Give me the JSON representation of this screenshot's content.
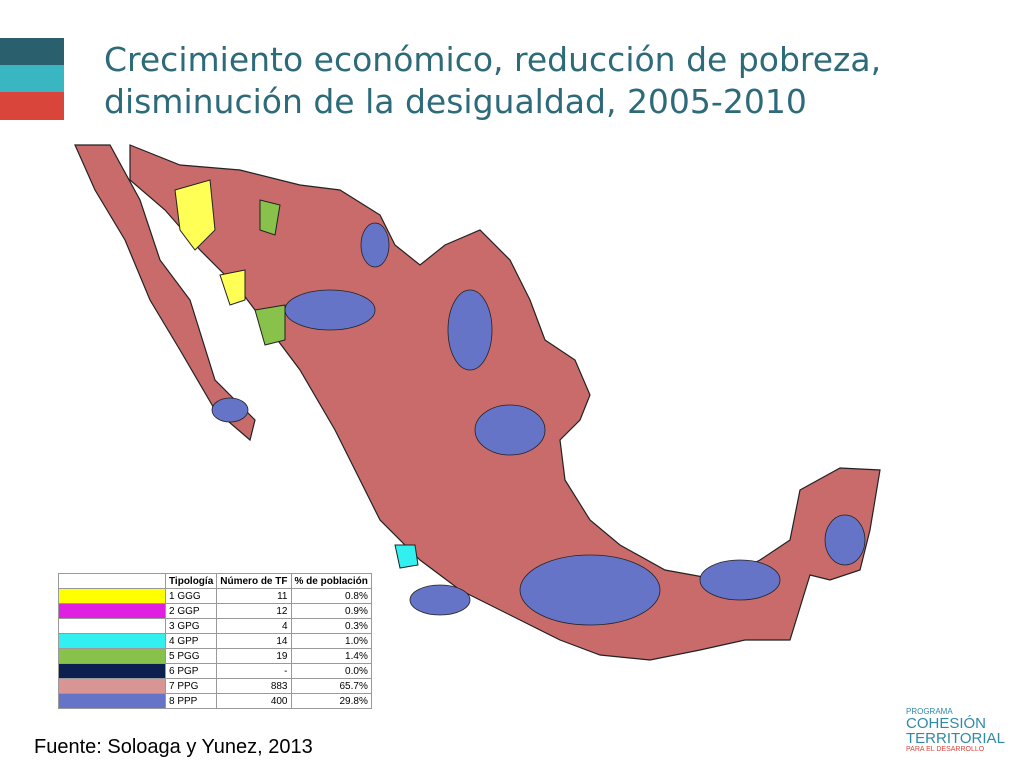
{
  "header": {
    "title_lines": [
      "Crecimiento económico, reducción de pobreza,",
      "disminución de la desigualdad, 2005-2010"
    ]
  },
  "table": {
    "columns": [
      "Tipología",
      "Número de TF",
      "% de población"
    ],
    "rows": [
      {
        "color": "#ffff00",
        "cells": [
          "1 GGG",
          "11",
          "0.8%"
        ]
      },
      {
        "color": "#e020e0",
        "cells": [
          "2 GGP",
          "12",
          "0.9%"
        ]
      },
      {
        "color": "#ffffff",
        "cells": [
          "3 GPG",
          "4",
          "0.3%"
        ]
      },
      {
        "color": "#33f0f0",
        "cells": [
          "4 GPP",
          "14",
          "1.0%"
        ]
      },
      {
        "color": "#88c24a",
        "cells": [
          "5 PGG",
          "19",
          "1.4%"
        ]
      },
      {
        "color": "#0d1f4f",
        "cells": [
          "6 PGP",
          "-",
          "0.0%"
        ]
      },
      {
        "color": "#d99494",
        "cells": [
          "7 PPG",
          "883",
          "65.7%"
        ]
      },
      {
        "color": "#6674c8",
        "cells": [
          "8 PPP",
          "400",
          "29.8%"
        ]
      }
    ]
  },
  "source": "Fuente: Soloaga y Yunez, 2013",
  "logo": {
    "line1": "PROGRAMA",
    "line2": "COHESIÓN",
    "line3": "TERRITORIAL",
    "line4": "PARA EL DESARROLLO"
  }
}
